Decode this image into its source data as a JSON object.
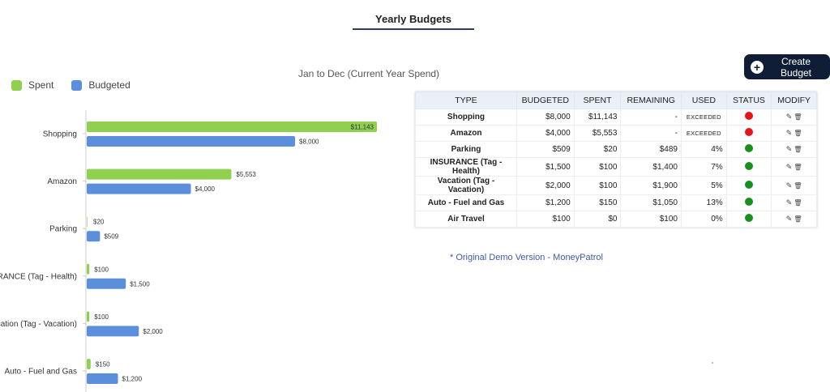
{
  "header": {
    "title": "Yearly Budgets"
  },
  "actions": {
    "create_label": "Create Budget"
  },
  "colors": {
    "spent": "#8fd14f",
    "budgeted": "#5b8fdc",
    "exceeded": "#e8141b",
    "ok": "#1a8f1f",
    "button_bg": "#0f1d36"
  },
  "legend": [
    {
      "label": "Spent",
      "color": "#8fd14f"
    },
    {
      "label": "Budgeted",
      "color": "#5b8fdc"
    }
  ],
  "chart_data": {
    "type": "bar",
    "orientation": "horizontal",
    "title": "Jan to Dec (Current Year Spend)",
    "categories": [
      "Shopping",
      "Amazon",
      "Parking",
      "INSURANCE (Tag - Health)",
      "Vacation (Tag - Vacation)",
      "Auto - Fuel and Gas"
    ],
    "series": [
      {
        "name": "Spent",
        "values": [
          11143,
          5553,
          20,
          100,
          100,
          150
        ],
        "labels": [
          "$11,143",
          "$5,553",
          "$20",
          "$100",
          "$100",
          "$150"
        ]
      },
      {
        "name": "Budgeted",
        "values": [
          8000,
          4000,
          509,
          1500,
          2000,
          1200
        ],
        "labels": [
          "$8,000",
          "$4,000",
          "$509",
          "$1,500",
          "$2,000",
          "$1,200"
        ]
      }
    ],
    "xlim": [
      0,
      11143
    ],
    "legend_position": "top-left",
    "grid": false
  },
  "table": {
    "headers": [
      "TYPE",
      "BUDGETED",
      "SPENT",
      "REMAINING",
      "USED",
      "STATUS",
      "MODIFY"
    ],
    "rows": [
      {
        "type": "Shopping",
        "budgeted": "$8,000",
        "spent": "$11,143",
        "remaining": "-",
        "used": "EXCEEDED",
        "status": "exceeded"
      },
      {
        "type": "Amazon",
        "budgeted": "$4,000",
        "spent": "$5,553",
        "remaining": "-",
        "used": "EXCEEDED",
        "status": "exceeded"
      },
      {
        "type": "Parking",
        "budgeted": "$509",
        "spent": "$20",
        "remaining": "$489",
        "used": "4%",
        "status": "ok"
      },
      {
        "type": "INSURANCE (Tag - Health)",
        "budgeted": "$1,500",
        "spent": "$100",
        "remaining": "$1,400",
        "used": "7%",
        "status": "ok"
      },
      {
        "type": "Vacation (Tag - Vacation)",
        "budgeted": "$2,000",
        "spent": "$100",
        "remaining": "$1,900",
        "used": "5%",
        "status": "ok"
      },
      {
        "type": "Auto - Fuel and Gas",
        "budgeted": "$1,200",
        "spent": "$150",
        "remaining": "$1,050",
        "used": "13%",
        "status": "ok"
      },
      {
        "type": "Air Travel",
        "budgeted": "$100",
        "spent": "$0",
        "remaining": "$100",
        "used": "0%",
        "status": "ok"
      }
    ],
    "modify_icons": [
      "pencil-icon",
      "trash-icon"
    ]
  },
  "footer": {
    "note": "* Original Demo Version - MoneyPatrol"
  }
}
